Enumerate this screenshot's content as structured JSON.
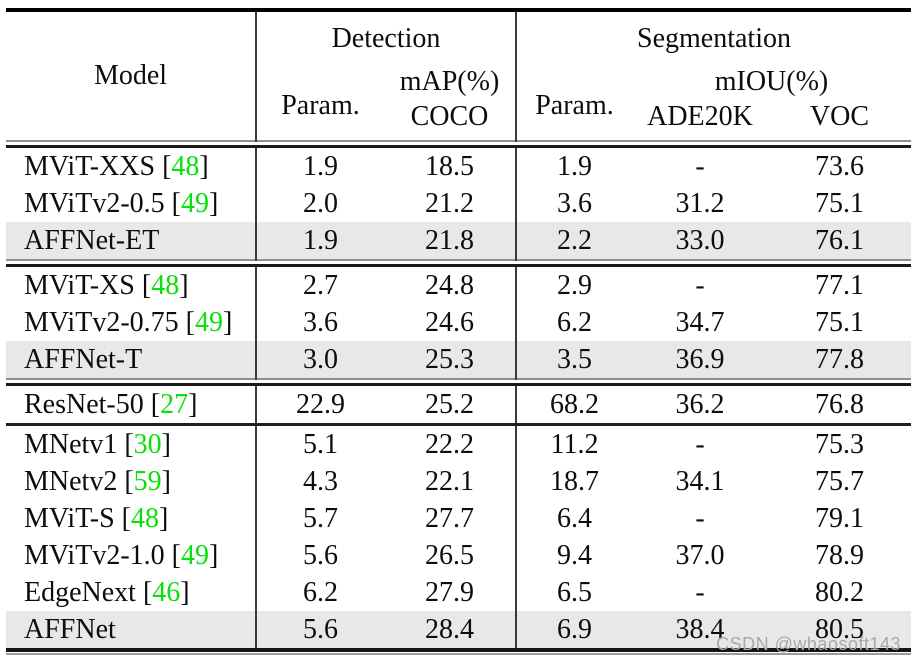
{
  "page": {
    "watermark": "CSDN @whaosoft143"
  },
  "colors": {
    "citation": "#0ae00a",
    "highlight_row": "#e8e8e8",
    "rule_dark": "#1a1a1a",
    "rule_gray": "#8f8f8f"
  },
  "header": {
    "model": "Model",
    "detection": "Detection",
    "segmentation": "Segmentation",
    "det_param": "Param.",
    "det_metric": "mAP(%)",
    "det_dataset": "COCO",
    "seg_param": "Param.",
    "seg_metric": "mIOU(%)",
    "seg_dataset1": "ADE20K",
    "seg_dataset2": "VOC"
  },
  "table": {
    "value_columns": [
      "det-param",
      "det-map-coco",
      "seg-param",
      "seg-miou-ade20k",
      "seg-miou-voc"
    ],
    "groups": [
      {
        "separator_after": "double",
        "rows": [
          {
            "model": "MViT-XXS",
            "cite": "48",
            "highlight": false,
            "values": [
              "1.9",
              "18.5",
              "1.9",
              "-",
              "73.6"
            ]
          },
          {
            "model": "MViTv2-0.5",
            "cite": "49",
            "highlight": false,
            "values": [
              "2.0",
              "21.2",
              "3.6",
              "31.2",
              "75.1"
            ]
          },
          {
            "model": "AFFNet-ET",
            "cite": null,
            "highlight": true,
            "values": [
              "1.9",
              "21.8",
              "2.2",
              "33.0",
              "76.1"
            ]
          }
        ]
      },
      {
        "separator_after": "double",
        "rows": [
          {
            "model": "MViT-XS",
            "cite": "48",
            "highlight": false,
            "values": [
              "2.7",
              "24.8",
              "2.9",
              "-",
              "77.1"
            ]
          },
          {
            "model": "MViTv2-0.75",
            "cite": "49",
            "highlight": false,
            "values": [
              "3.6",
              "24.6",
              "6.2",
              "34.7",
              "75.1"
            ]
          },
          {
            "model": "AFFNet-T",
            "cite": null,
            "highlight": true,
            "values": [
              "3.0",
              "25.3",
              "3.5",
              "36.9",
              "77.8"
            ]
          }
        ]
      },
      {
        "separator_after": "single",
        "rows": [
          {
            "model": "ResNet-50",
            "cite": "27",
            "highlight": false,
            "values": [
              "22.9",
              "25.2",
              "68.2",
              "36.2",
              "76.8"
            ]
          }
        ]
      },
      {
        "separator_after": null,
        "rows": [
          {
            "model": "MNetv1",
            "cite": "30",
            "highlight": false,
            "values": [
              "5.1",
              "22.2",
              "11.2",
              "-",
              "75.3"
            ]
          },
          {
            "model": "MNetv2",
            "cite": "59",
            "highlight": false,
            "values": [
              "4.3",
              "22.1",
              "18.7",
              "34.1",
              "75.7"
            ]
          },
          {
            "model": "MViT-S",
            "cite": "48",
            "highlight": false,
            "values": [
              "5.7",
              "27.7",
              "6.4",
              "-",
              "79.1"
            ]
          },
          {
            "model": "MViTv2-1.0",
            "cite": "49",
            "highlight": false,
            "values": [
              "5.6",
              "26.5",
              "9.4",
              "37.0",
              "78.9"
            ]
          },
          {
            "model": "EdgeNext",
            "cite": "46",
            "highlight": false,
            "values": [
              "6.2",
              "27.9",
              "6.5",
              "-",
              "80.2"
            ]
          },
          {
            "model": "AFFNet",
            "cite": null,
            "highlight": true,
            "values": [
              "5.6",
              "28.4",
              "6.9",
              "38.4",
              "80.5"
            ]
          }
        ]
      }
    ]
  }
}
